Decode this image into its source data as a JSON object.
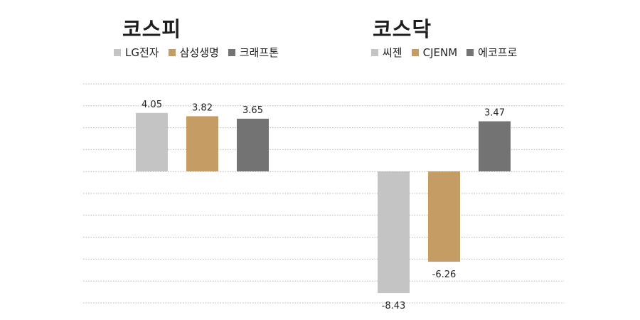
{
  "colors": {
    "series1": "#c4c4c4",
    "series2": "#c69c65",
    "series3": "#737373",
    "grid": "#b5b5b5",
    "label": "#222222"
  },
  "chart_data": [
    {
      "type": "bar",
      "title": "코스피",
      "categories": [
        "LG전자",
        "삼성생명",
        "크래프톤"
      ],
      "values": [
        4.05,
        3.82,
        3.65
      ],
      "value_labels": [
        "4.05",
        "3.82",
        "3.65"
      ],
      "ylim": [
        -10,
        6
      ],
      "grid": true,
      "legend_position": "top"
    },
    {
      "type": "bar",
      "title": "코스닥",
      "categories": [
        "씨젠",
        "CJENM",
        "에코프로"
      ],
      "values": [
        -8.43,
        -6.26,
        3.47
      ],
      "value_labels": [
        "-8.43",
        "-6.26",
        "3.47"
      ],
      "ylim": [
        -10,
        6
      ],
      "grid": true,
      "legend_position": "top"
    }
  ]
}
